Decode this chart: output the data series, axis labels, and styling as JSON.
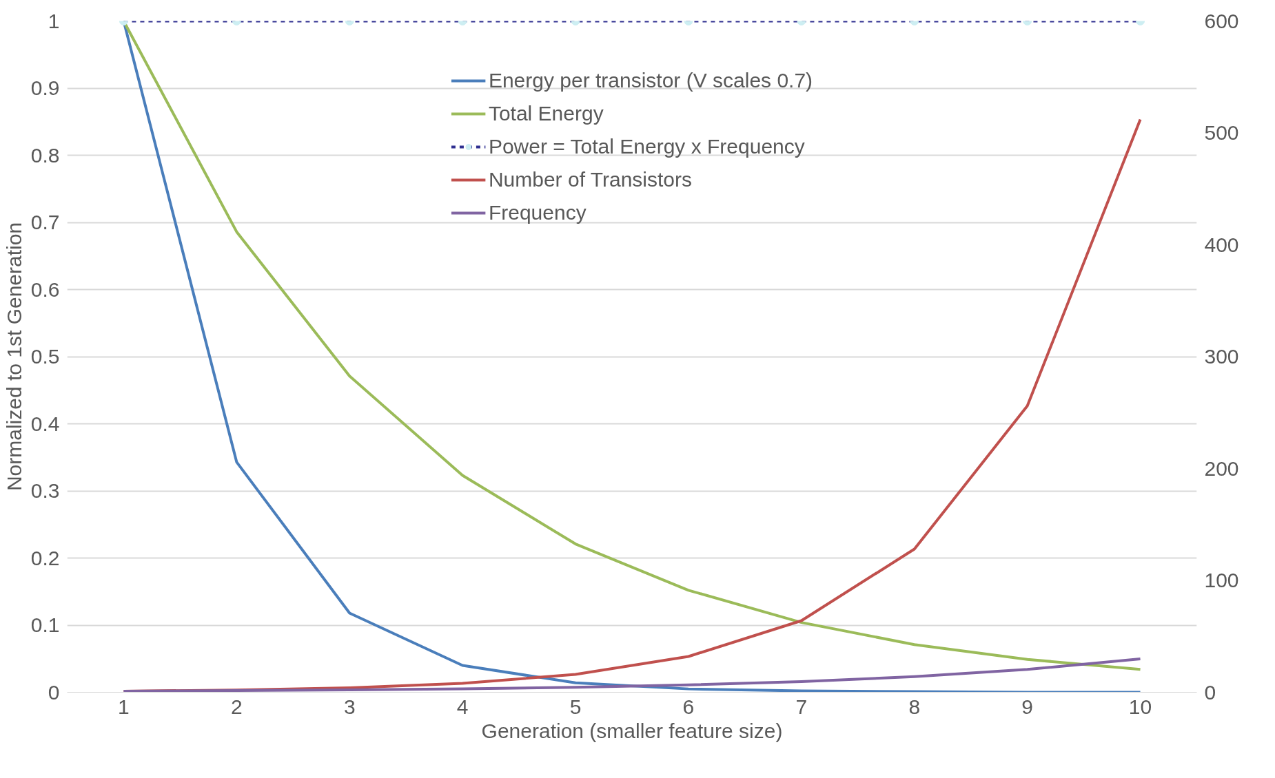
{
  "chart_data": {
    "type": "line",
    "xlabel": "Generation (smaller feature size)",
    "ylabel": "Normalized to 1st Generation",
    "categories": [
      "1",
      "2",
      "3",
      "4",
      "5",
      "6",
      "7",
      "8",
      "9",
      "10"
    ],
    "series": [
      {
        "name": "Energy per transistor (V scales 0.7)",
        "color": "#4a7ebb",
        "values": [
          1,
          0.343,
          0.118,
          0.04,
          0.014,
          0.005,
          0.002,
          0.001,
          0,
          0
        ]
      },
      {
        "name": "Total Energy",
        "color": "#9bbb59",
        "values": [
          1,
          0.686,
          0.471,
          0.323,
          0.221,
          0.152,
          0.104,
          0.071,
          0.049,
          0.034
        ]
      },
      {
        "name": "Power = Total Energy x Frequency",
        "color": "#2e2e8f",
        "line_style": "dashed",
        "marker": "circle",
        "values": [
          1,
          1,
          1,
          1,
          1,
          1,
          1,
          1,
          1,
          1
        ]
      },
      {
        "name": "Number of Transistors",
        "color": "#c0504d",
        "axis": "y2",
        "values": [
          1,
          2,
          4,
          8,
          16,
          32,
          64,
          128,
          256,
          512
        ]
      },
      {
        "name": "Frequency",
        "color": "#8064a2",
        "axis": "y2",
        "values": [
          1,
          1.5,
          2.1,
          3.1,
          4.5,
          6.6,
          9.6,
          14,
          20.4,
          29.8
        ]
      }
    ],
    "ylim": [
      0,
      1
    ],
    "yticks": [
      0,
      0.1,
      0.2,
      0.3,
      0.4,
      0.5,
      0.6,
      0.7,
      0.8,
      0.9,
      1
    ],
    "y2lim": [
      0,
      600
    ],
    "y2ticks": [
      0,
      100,
      200,
      300,
      400,
      500,
      600
    ],
    "grid": "y",
    "legend": "top",
    "marker": "none",
    "line_style": "solid"
  }
}
